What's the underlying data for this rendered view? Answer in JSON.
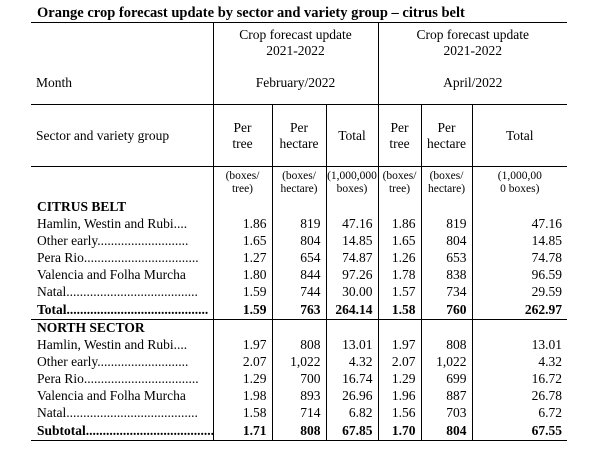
{
  "title": "Orange crop forecast update by sector and variety group – citrus belt",
  "header": {
    "forecast_title_1": "Crop forecast update",
    "forecast_title_2": "Crop forecast update",
    "season_1": "2021-2022",
    "season_2": "2021-2022",
    "month_label": "Month",
    "month_1": "February/2022",
    "month_2": "April/2022",
    "sector_label": "Sector and variety group",
    "col_per_tree_a": "Per",
    "col_per_tree_b": "tree",
    "col_per_hectare_a": "Per",
    "col_per_hectare_b": "hectare",
    "col_total": "Total",
    "unit_tree_a": "(boxes/",
    "unit_tree_b": "tree)",
    "unit_hectare_a": "(boxes/",
    "unit_hectare_b": "hectare)",
    "unit_total_1a": "(1,000,000",
    "unit_total_1b": "boxes)",
    "unit_total_2a": "(1,000,00",
    "unit_total_2b": "0 boxes)"
  },
  "sections": [
    {
      "name": "CITRUS BELT",
      "rows": [
        {
          "label": "Hamlin, Westin and Rubi....",
          "values": [
            "1.86",
            "819",
            "47.16",
            "1.86",
            "819",
            "47.16"
          ]
        },
        {
          "label": "Other early...........................",
          "values": [
            "1.65",
            "804",
            "14.85",
            "1.65",
            "804",
            "14.85"
          ]
        },
        {
          "label": "Pera Rio..................................",
          "values": [
            "1.27",
            "654",
            "74.87",
            "1.26",
            "653",
            "74.78"
          ]
        },
        {
          "label": "Valencia and Folha Murcha",
          "values": [
            "1.80",
            "844",
            "97.26",
            "1.78",
            "838",
            "96.59"
          ]
        },
        {
          "label": "Natal.......................................",
          "values": [
            "1.59",
            "744",
            "30.00",
            "1.57",
            "734",
            "29.59"
          ]
        }
      ],
      "total": {
        "label": "Total..........................................",
        "values": [
          "1.59",
          "763",
          "264.14",
          "1.58",
          "760",
          "262.97"
        ]
      }
    },
    {
      "name": "NORTH SECTOR",
      "rows": [
        {
          "label": "Hamlin, Westin and Rubi....",
          "values": [
            "1.97",
            "808",
            "13.01",
            "1.97",
            "808",
            "13.01"
          ]
        },
        {
          "label": "Other early...........................",
          "values": [
            "2.07",
            "1,022",
            "4.32",
            "2.07",
            "1,022",
            "4.32"
          ]
        },
        {
          "label": "Pera Rio..................................",
          "values": [
            "1.29",
            "700",
            "16.74",
            "1.29",
            "699",
            "16.72"
          ]
        },
        {
          "label": "Valencia and Folha Murcha",
          "values": [
            "1.98",
            "893",
            "26.96",
            "1.96",
            "887",
            "26.78"
          ]
        },
        {
          "label": "Natal.......................................",
          "values": [
            "1.58",
            "714",
            "6.82",
            "1.56",
            "703",
            "6.72"
          ]
        }
      ],
      "total": {
        "label": "Subtotal.......................................",
        "values": [
          "1.71",
          "808",
          "67.85",
          "1.70",
          "804",
          "67.55"
        ]
      }
    }
  ]
}
